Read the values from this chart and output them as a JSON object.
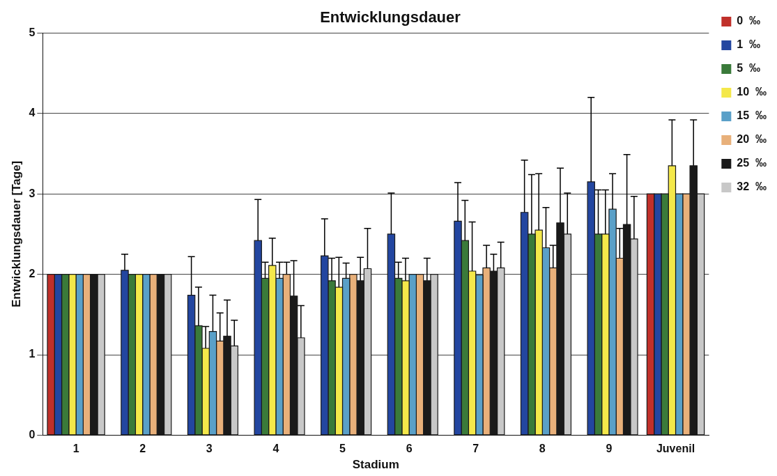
{
  "chart_data": {
    "type": "bar",
    "title": "Entwicklungsdauer",
    "xlabel": "Stadium",
    "ylabel": "Entwicklungsdauer [Tage]",
    "categories": [
      "1",
      "2",
      "3",
      "4",
      "5",
      "6",
      "7",
      "8",
      "9",
      "Juvenil"
    ],
    "ylim": [
      0,
      5
    ],
    "yticks": [
      0,
      1,
      2,
      3,
      4,
      5
    ],
    "grid": "y",
    "legend": "top right",
    "series": [
      {
        "name": "0  ‰",
        "color": "#c0302a",
        "values": [
          2,
          null,
          null,
          null,
          null,
          null,
          null,
          null,
          null,
          3
        ]
      },
      {
        "name": "1  ‰",
        "color": "#2346a0",
        "values": [
          2,
          2.05,
          1.74,
          2.42,
          2.23,
          2.5,
          2.66,
          2.77,
          3.15,
          3
        ],
        "errors": [
          null,
          [
            2.05,
            2.25
          ],
          [
            1.74,
            2.22
          ],
          [
            2.42,
            2.93
          ],
          [
            2.23,
            2.69
          ],
          [
            2.5,
            3.01
          ],
          [
            2.66,
            3.14
          ],
          [
            2.77,
            3.42
          ],
          [
            3.15,
            4.2
          ],
          null
        ]
      },
      {
        "name": "5  ‰",
        "color": "#3a7a3a",
        "values": [
          2,
          2,
          1.36,
          1.95,
          1.92,
          1.95,
          2.42,
          2.5,
          2.5,
          3
        ],
        "errors": [
          null,
          null,
          [
            1.36,
            1.84
          ],
          [
            1.95,
            2.15
          ],
          [
            1.92,
            2.2
          ],
          [
            1.95,
            2.15
          ],
          [
            2.42,
            2.92
          ],
          [
            2.5,
            3.24
          ],
          [
            2.5,
            3.05
          ],
          null
        ]
      },
      {
        "name": "10  ‰",
        "color": "#f4e84a",
        "values": [
          2,
          2,
          1.08,
          2.11,
          1.84,
          1.92,
          2.04,
          2.55,
          2.5,
          3.35
        ],
        "errors": [
          null,
          null,
          [
            1.08,
            1.35
          ],
          [
            2.11,
            2.45
          ],
          [
            1.84,
            2.21
          ],
          [
            1.92,
            2.2
          ],
          [
            2.04,
            2.65
          ],
          [
            2.55,
            3.25
          ],
          [
            2.5,
            3.05
          ],
          [
            3.35,
            3.92
          ]
        ]
      },
      {
        "name": "15  ‰",
        "color": "#5aa0c8",
        "values": [
          2,
          2,
          1.29,
          1.95,
          1.95,
          2,
          1.99,
          2.33,
          2.81,
          3
        ],
        "errors": [
          null,
          null,
          [
            1.29,
            1.74
          ],
          [
            1.95,
            2.15
          ],
          [
            1.95,
            2.14
          ],
          null,
          null,
          [
            2.33,
            2.83
          ],
          [
            2.81,
            3.25
          ],
          null
        ]
      },
      {
        "name": "20  ‰",
        "color": "#e8b07a",
        "values": [
          2,
          2,
          1.17,
          2,
          2,
          2,
          2.08,
          2.08,
          2.2,
          3
        ],
        "errors": [
          null,
          null,
          [
            1.17,
            1.52
          ],
          [
            2,
            2.15
          ],
          null,
          null,
          [
            2.08,
            2.36
          ],
          [
            2.08,
            2.36
          ],
          [
            2.2,
            2.57
          ],
          null
        ]
      },
      {
        "name": "25  ‰",
        "color": "#1a1a1a",
        "values": [
          2,
          2,
          1.23,
          1.73,
          1.92,
          1.92,
          2.04,
          2.64,
          2.62,
          3.35
        ],
        "errors": [
          null,
          null,
          [
            1.23,
            1.68
          ],
          [
            1.73,
            2.17
          ],
          [
            1.92,
            2.21
          ],
          [
            1.92,
            2.2
          ],
          [
            2.04,
            2.25
          ],
          [
            2.64,
            3.32
          ],
          [
            2.62,
            3.49
          ],
          [
            3.35,
            3.92
          ]
        ]
      },
      {
        "name": "32  ‰",
        "color": "#c8c8c8",
        "values": [
          2,
          2,
          1.11,
          1.21,
          2.07,
          2,
          2.08,
          2.5,
          2.44,
          3
        ],
        "errors": [
          null,
          null,
          [
            1.11,
            1.43
          ],
          [
            1.21,
            1.61
          ],
          [
            2.07,
            2.57
          ],
          null,
          [
            2.08,
            2.4
          ],
          [
            2.5,
            3.01
          ],
          [
            2.44,
            2.97
          ],
          null
        ]
      }
    ]
  }
}
